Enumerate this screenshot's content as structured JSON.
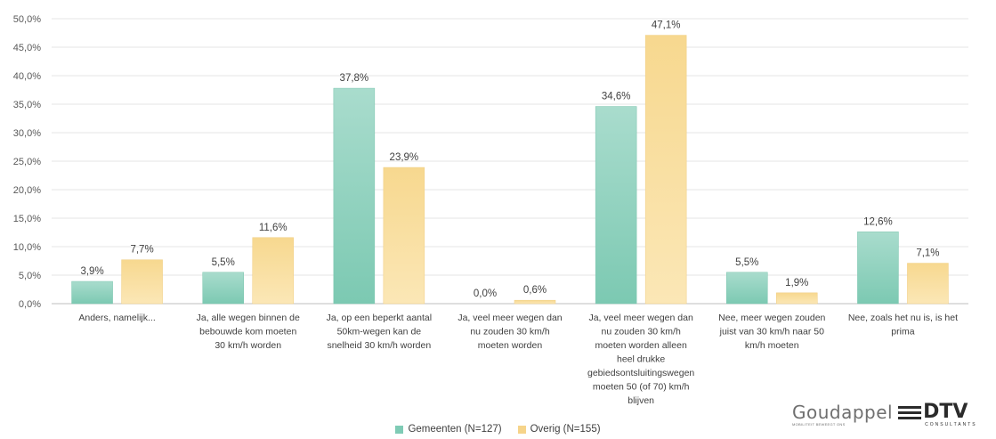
{
  "chart_data": {
    "type": "bar",
    "categories": [
      "Anders, namelijk...",
      "Ja, alle wegen binnen de bebouwde kom moeten 30 km/h worden",
      "Ja, op een beperkt aantal 50km-wegen kan de snelheid 30 km/h worden",
      "Ja, veel meer wegen dan nu zouden 30 km/h moeten worden",
      "Ja, veel meer wegen dan nu zouden 30 km/h moeten worden alleen heel drukke gebiedsontsluitingswegen moeten 50 (of 70) km/h blijven",
      "Nee, meer wegen zouden juist van 30 km/h naar 50 km/h moeten",
      "Nee, zoals het nu is, is het prima"
    ],
    "category_lines": [
      [
        "Anders, namelijk..."
      ],
      [
        "Ja, alle wegen binnen de",
        "bebouwde kom moeten",
        "30 km/h worden"
      ],
      [
        "Ja, op een beperkt aantal",
        "50km-wegen kan de",
        "snelheid 30 km/h worden"
      ],
      [
        "Ja, veel meer wegen dan",
        "nu zouden 30 km/h",
        "moeten worden"
      ],
      [
        "Ja, veel meer wegen dan",
        "nu zouden 30 km/h",
        "moeten worden alleen",
        "heel drukke",
        "gebiedsontsluitingswegen",
        "moeten 50 (of 70) km/h",
        "blijven"
      ],
      [
        "Nee, meer wegen zouden",
        "juist van 30 km/h naar 50",
        "km/h moeten"
      ],
      [
        "Nee, zoals het nu is, is het",
        "prima"
      ]
    ],
    "series": [
      {
        "name": "Gemeenten (N=127)",
        "values": [
          3.9,
          5.5,
          37.8,
          0.0,
          34.6,
          5.5,
          12.6
        ],
        "labels": [
          "3,9%",
          "5,5%",
          "37,8%",
          "0,0%",
          "34,6%",
          "5,5%",
          "12,6%"
        ],
        "color": "#7fcbb5"
      },
      {
        "name": "Overig (N=155)",
        "values": [
          7.7,
          11.6,
          23.9,
          0.6,
          47.1,
          1.9,
          7.1
        ],
        "labels": [
          "7,7%",
          "11,6%",
          "23,9%",
          "0,6%",
          "47,1%",
          "1,9%",
          "7,1%"
        ],
        "color": "#f6d48a"
      }
    ],
    "yticks": [
      "0,0%",
      "5,0%",
      "10,0%",
      "15,0%",
      "20,0%",
      "25,0%",
      "30,0%",
      "35,0%",
      "40,0%",
      "45,0%",
      "50,0%"
    ],
    "ylim": [
      0,
      50
    ],
    "grid": true,
    "legend_position": "bottom"
  },
  "logo": {
    "goudappel": "Goudappel",
    "goudappel_sub": "MOBILITEIT BEWEEGT ONS",
    "dtv": "DTV",
    "dtv_sub": "CONSULTANTS"
  }
}
